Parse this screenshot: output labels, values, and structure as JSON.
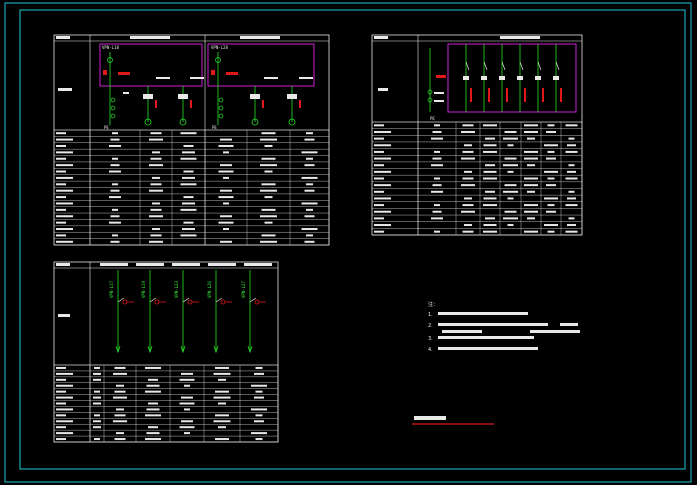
{
  "drawing": {
    "colors": {
      "frame": "#20c8d8",
      "line": "#e8e8e8",
      "bus": "#d020d0",
      "green": "#28e028",
      "red": "#e01818",
      "background": "#000000"
    }
  },
  "panels": {
    "a": {
      "header_left": "",
      "header_cols": [
        "",
        ""
      ]
    },
    "b": {
      "header_left": "",
      "header_col": ""
    },
    "c": {
      "header_left": "",
      "header_cols": [
        "",
        "",
        "",
        "",
        ""
      ]
    }
  },
  "diagram_labels": {
    "a_feeders": [
      "VPN-L18",
      "VPN-L28"
    ],
    "a_pe": "PE",
    "b_pe": "PE",
    "c_feeders": [
      "VPN-L17",
      "VPN-L19",
      "VPN-L23",
      "VPN-L26",
      "VPN-L27"
    ]
  },
  "notes": {
    "heading": "注：",
    "items": [
      "1.",
      "2.",
      "3.",
      "4."
    ]
  },
  "title_block": {
    "label": ""
  }
}
